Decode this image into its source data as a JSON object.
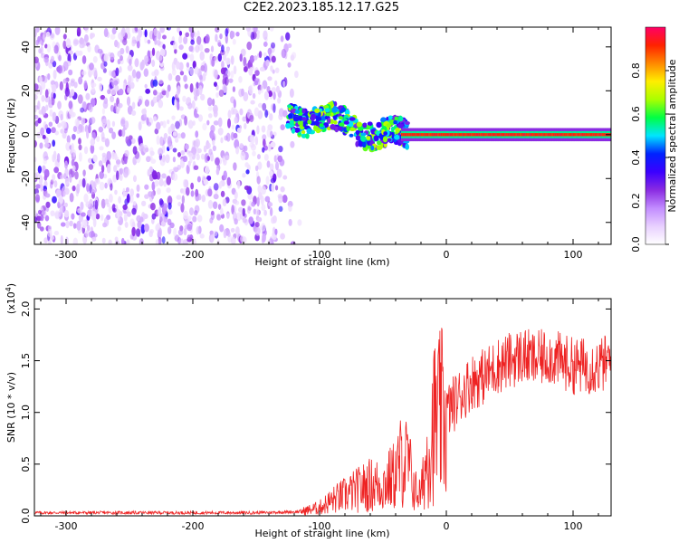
{
  "title": "C2E2.2023.185.12.17.G25",
  "chart_data": [
    {
      "type": "heatmap",
      "title": "",
      "xlabel": "Height of straight line (km)",
      "ylabel": "Frequency (Hz)",
      "xlim": [
        -325,
        130
      ],
      "ylim": [
        -50,
        49
      ],
      "xticks": [
        -300,
        -200,
        -100,
        0,
        100
      ],
      "yticks": [
        -40,
        -20,
        0,
        20,
        40
      ],
      "colorbar": {
        "label": "Normalized spectral amplitude",
        "range": [
          0,
          1
        ],
        "ticks": [
          "0.0",
          "0.2",
          "0.4",
          "0.6",
          "0.8"
        ],
        "tick_values": [
          0,
          0.2,
          0.4,
          0.6,
          0.8
        ],
        "colors": [
          "#ffffff",
          "#e8d0ff",
          "#c28cff",
          "#8a2be2",
          "#3b00ff",
          "#0022ff",
          "#00e5ff",
          "#00ff44",
          "#aaff00",
          "#ffee00",
          "#ff8800",
          "#ff2200",
          "#ff0066"
        ]
      },
      "regions": [
        {
          "x": [
            -325,
            -115
          ],
          "y": [
            -50,
            49
          ],
          "level": 0.15,
          "note": "broadband noise"
        },
        {
          "x": [
            -125,
            -30
          ],
          "y": [
            -15,
            18
          ],
          "level": 0.5,
          "note": "scattered echo"
        },
        {
          "x": [
            -35,
            130
          ],
          "y": [
            -1.5,
            1.5
          ],
          "level": 0.9,
          "note": "strong carrier"
        }
      ]
    },
    {
      "type": "line",
      "title": "",
      "xlabel": "Height of straight line (km)",
      "ylabel": "SNR (10 * v/v)",
      "ylabel_scale": "(x10",
      "ylabel_exp": "4",
      "y_multiplier": 10000,
      "xlim": [
        -325,
        130
      ],
      "ylim": [
        0,
        2.1
      ],
      "xticks": [
        -300,
        -200,
        -100,
        0,
        100
      ],
      "yticks": [
        "0.0",
        "0.5",
        "1.0",
        "1.5",
        "2.0"
      ],
      "ytick_values": [
        0,
        0.5,
        1.0,
        1.5,
        2.0
      ],
      "series": [
        {
          "color": "#ee2222",
          "x": [
            -325,
            -300,
            -250,
            -200,
            -150,
            -115,
            -100,
            -90,
            -80,
            -70,
            -60,
            -50,
            -45,
            -40,
            -35,
            -30,
            -25,
            -20,
            -15,
            -10,
            0,
            10,
            20,
            30,
            40,
            50,
            60,
            70,
            80,
            90,
            100,
            110,
            120,
            130
          ],
          "y": [
            0.03,
            0.03,
            0.03,
            0.03,
            0.03,
            0.04,
            0.08,
            0.15,
            0.2,
            0.25,
            0.3,
            0.3,
            0.35,
            0.4,
            0.55,
            0.5,
            0.25,
            0.2,
            0.6,
            0.9,
            1.0,
            1.15,
            1.3,
            1.35,
            1.45,
            1.5,
            1.55,
            1.5,
            1.55,
            1.5,
            1.45,
            1.45,
            1.45,
            1.5
          ]
        }
      ]
    }
  ]
}
